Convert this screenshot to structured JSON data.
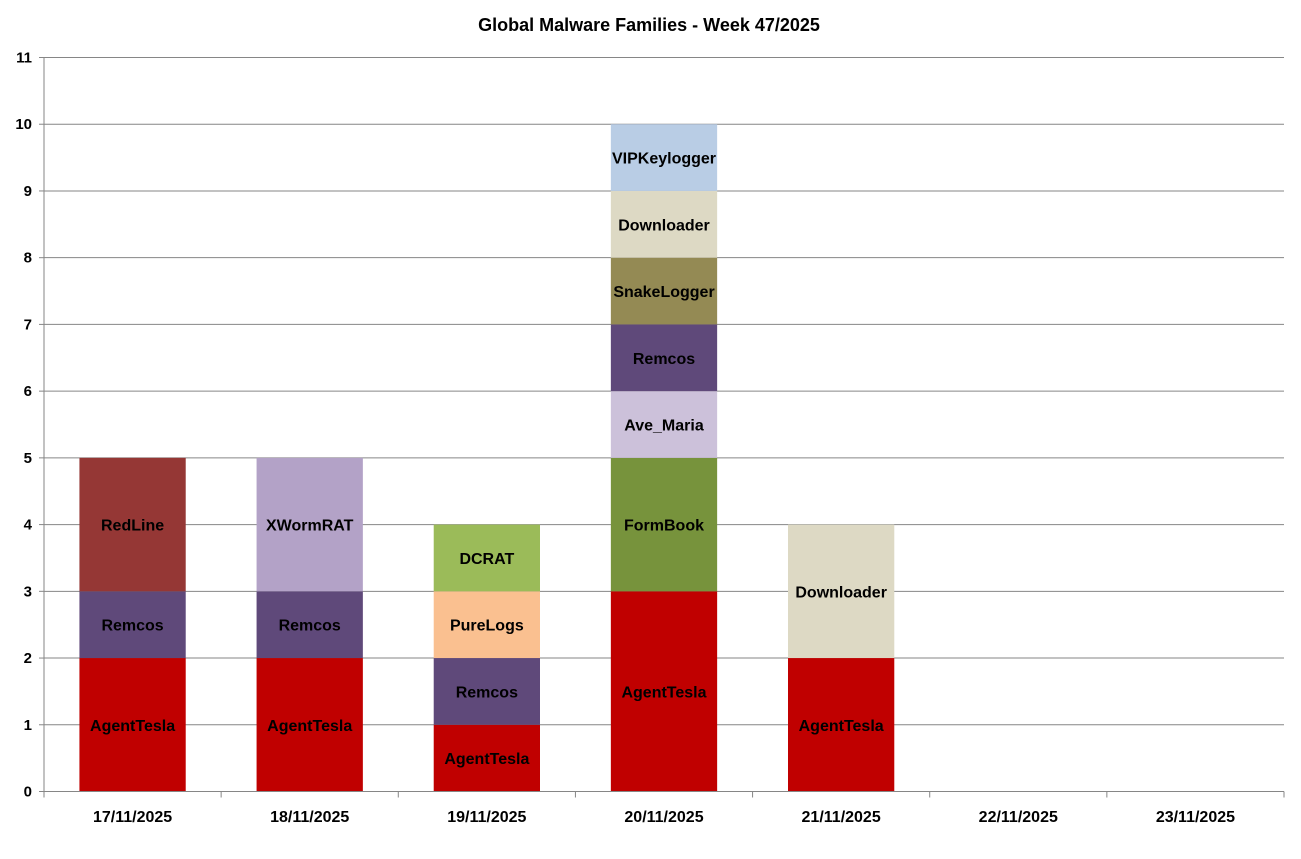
{
  "chart_data": {
    "type": "bar",
    "stacked": true,
    "title": "Global Malware Families - Week 47/2025",
    "xlabel": "",
    "ylabel": "",
    "ylim": [
      0,
      11
    ],
    "yticks": [
      "0",
      "1",
      "2",
      "3",
      "4",
      "5",
      "6",
      "7",
      "8",
      "9",
      "10",
      "11"
    ],
    "grid": true,
    "legend": "none",
    "categories": [
      "17/11/2025",
      "18/11/2025",
      "19/11/2025",
      "20/11/2025",
      "21/11/2025",
      "22/11/2025",
      "23/11/2025"
    ],
    "bars": [
      {
        "category": "17/11/2025",
        "segments": [
          {
            "label": "AgentTesla",
            "value": 2,
            "color": "#C00000"
          },
          {
            "label": "Remcos",
            "value": 1,
            "color": "#5F497A"
          },
          {
            "label": "RedLine",
            "value": 2,
            "color": "#953735"
          }
        ]
      },
      {
        "category": "18/11/2025",
        "segments": [
          {
            "label": "AgentTesla",
            "value": 2,
            "color": "#C00000"
          },
          {
            "label": "Remcos",
            "value": 1,
            "color": "#5F497A"
          },
          {
            "label": "XWormRAT",
            "value": 2,
            "color": "#B3A2C7"
          }
        ]
      },
      {
        "category": "19/11/2025",
        "segments": [
          {
            "label": "AgentTesla",
            "value": 1,
            "color": "#C00000"
          },
          {
            "label": "Remcos",
            "value": 1,
            "color": "#5F497A"
          },
          {
            "label": "PureLogs",
            "value": 1,
            "color": "#FAC090"
          },
          {
            "label": "DCRAT",
            "value": 1,
            "color": "#9BBB59"
          }
        ]
      },
      {
        "category": "20/11/2025",
        "segments": [
          {
            "label": "AgentTesla",
            "value": 3,
            "color": "#C00000"
          },
          {
            "label": "FormBook",
            "value": 2,
            "color": "#77933C"
          },
          {
            "label": "Ave_Maria",
            "value": 1,
            "color": "#CCC1DA"
          },
          {
            "label": "Remcos",
            "value": 1,
            "color": "#5F497A"
          },
          {
            "label": "SnakeLogger",
            "value": 1,
            "color": "#948A54"
          },
          {
            "label": "Downloader",
            "value": 1,
            "color": "#DDD9C4"
          },
          {
            "label": "VIPKeylogger",
            "value": 1,
            "color": "#B9CDE5"
          }
        ]
      },
      {
        "category": "21/11/2025",
        "segments": [
          {
            "label": "AgentTesla",
            "value": 2,
            "color": "#C00000"
          },
          {
            "label": "Downloader",
            "value": 2,
            "color": "#DDD9C4"
          }
        ]
      },
      {
        "category": "22/11/2025",
        "segments": []
      },
      {
        "category": "23/11/2025",
        "segments": []
      }
    ],
    "colors": {
      "grid": "#868686",
      "axis": "#868686",
      "text": "#000000"
    }
  }
}
